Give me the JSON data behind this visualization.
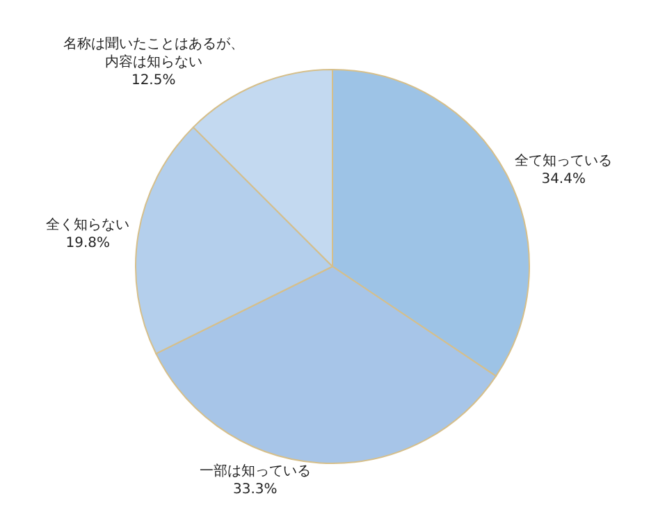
{
  "chart_data": {
    "type": "pie",
    "categories": [
      "全て知っている",
      "一部は知っている",
      "全く知らない",
      "名称は聞いたことはあるが、内容は知らない"
    ],
    "values": [
      34.4,
      33.3,
      19.8,
      12.5
    ],
    "value_labels": [
      "34.4%",
      "33.3%",
      "19.8%",
      "12.5%"
    ],
    "colors": [
      "#9dc3e6",
      "#a7c5e8",
      "#b4cfec",
      "#c3d9f0"
    ],
    "legend": false
  }
}
